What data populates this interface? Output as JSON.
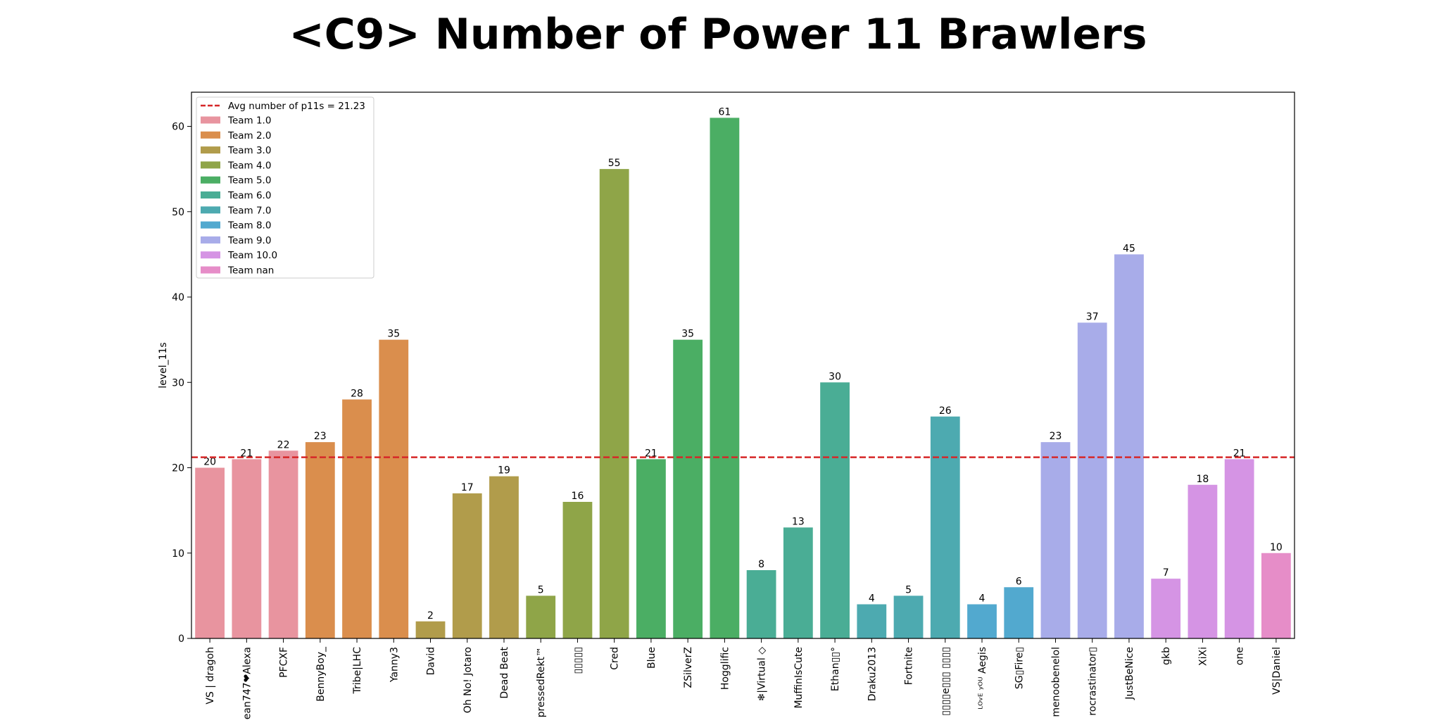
{
  "chart_data": {
    "type": "bar",
    "title": "<C9> Number of Power 11 Brawlers",
    "xlabel": "",
    "ylabel": "level_11s",
    "ylim": [
      0,
      64
    ],
    "yticks": [
      0,
      10,
      20,
      30,
      40,
      50,
      60
    ],
    "grid": false,
    "legend_position": "top-left",
    "categories": [
      "VS | dragoh",
      "ean747❤Alexa",
      "PFCXF",
      "BennyBoy_",
      "Tribe|LHC",
      "Yanny3",
      "David",
      "Oh No! Jotaro",
      "Dead Beat",
      "pressedRekt™",
      "▯▯▯▯▯",
      "Cred",
      "Blue",
      "ZSilverZ",
      "Hogglific",
      "❄|Virtual ◇",
      "MuffinIsCute",
      "Ethan▯▯°",
      "Draku2013",
      "Fortnite",
      "▯▯▯▯e▯▯▯ ▯▯▯▯",
      "ᴸᴼᵛᴱ ʸᴼᵁ Aegis",
      "SG▯Fire▯",
      "menoobenelol",
      "rocrastinator▯",
      "JustBeNice",
      "gkb",
      "XiXi",
      "one",
      "VS|Daniel"
    ],
    "values": [
      20,
      21,
      22,
      23,
      28,
      35,
      2,
      17,
      19,
      5,
      16,
      55,
      21,
      35,
      61,
      8,
      13,
      30,
      4,
      5,
      26,
      4,
      6,
      23,
      37,
      45,
      7,
      18,
      21,
      10
    ],
    "teams": [
      "Team 1.0",
      "Team 1.0",
      "Team 1.0",
      "Team 2.0",
      "Team 2.0",
      "Team 2.0",
      "Team 3.0",
      "Team 3.0",
      "Team 3.0",
      "Team 4.0",
      "Team 4.0",
      "Team 4.0",
      "Team 5.0",
      "Team 5.0",
      "Team 5.0",
      "Team 6.0",
      "Team 6.0",
      "Team 6.0",
      "Team 7.0",
      "Team 7.0",
      "Team 7.0",
      "Team 8.0",
      "Team 8.0",
      "Team 9.0",
      "Team 9.0",
      "Team 9.0",
      "Team 10.0",
      "Team 10.0",
      "Team 10.0",
      "Team nan"
    ],
    "average": {
      "label": "Avg number of p11s = 21.23",
      "value": 21.23,
      "color": "#d62728"
    },
    "legend": [
      {
        "name": "Team 1.0",
        "color": "#e8949f"
      },
      {
        "name": "Team 2.0",
        "color": "#da8e4d"
      },
      {
        "name": "Team 3.0",
        "color": "#b19c4b"
      },
      {
        "name": "Team 4.0",
        "color": "#8fa548"
      },
      {
        "name": "Team 5.0",
        "color": "#4bae64"
      },
      {
        "name": "Team 6.0",
        "color": "#4aad95"
      },
      {
        "name": "Team 7.0",
        "color": "#4daab0"
      },
      {
        "name": "Team 8.0",
        "color": "#52a9cf"
      },
      {
        "name": "Team 9.0",
        "color": "#a8ace9"
      },
      {
        "name": "Team 10.0",
        "color": "#d594e4"
      },
      {
        "name": "Team nan",
        "color": "#e68dc8"
      }
    ]
  }
}
